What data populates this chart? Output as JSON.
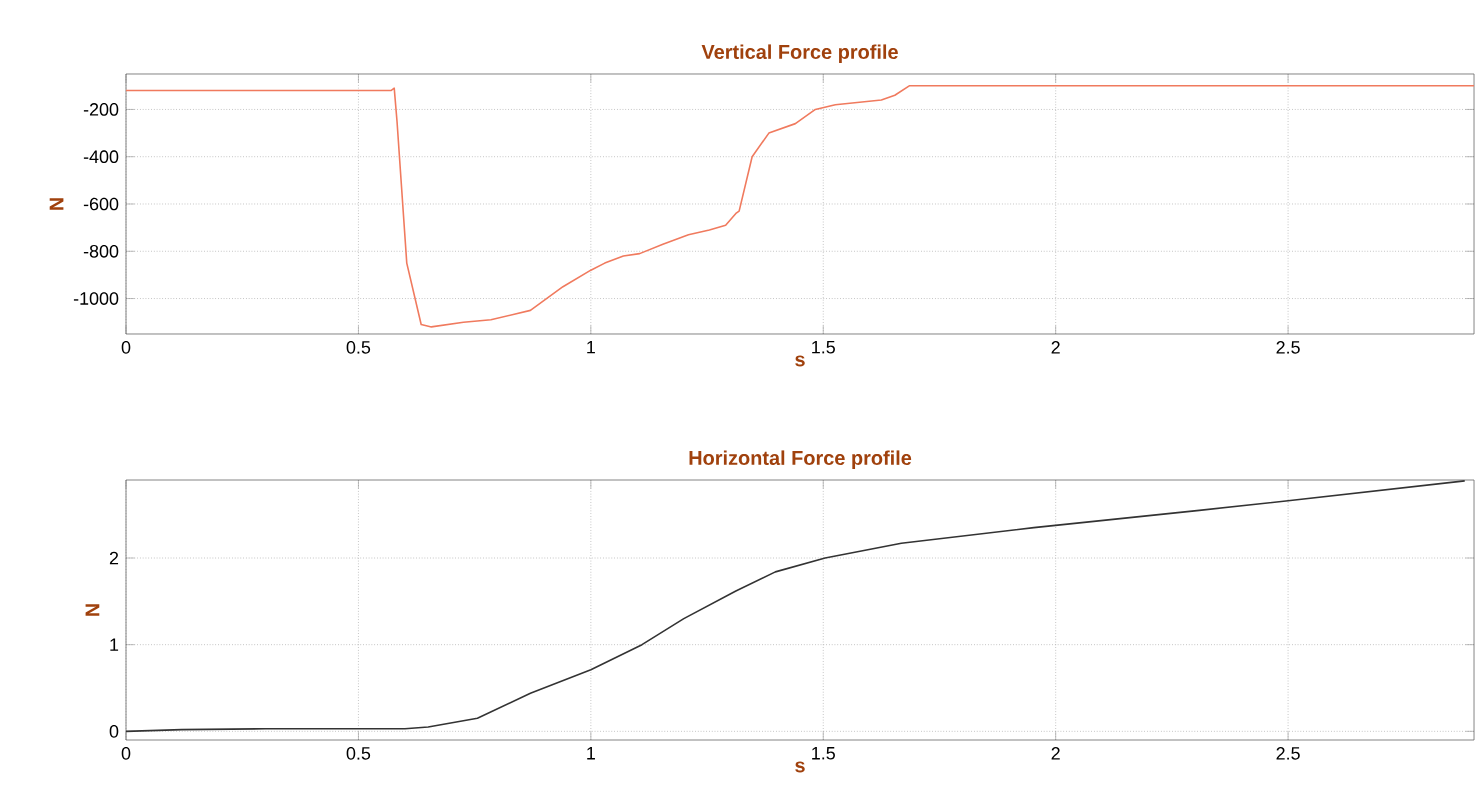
{
  "chart_data": [
    {
      "type": "line",
      "title": "Vertical Force profile",
      "xlabel": "s",
      "ylabel": "N",
      "xlim": [
        0,
        2.9
      ],
      "ylim": [
        -1150,
        -50
      ],
      "xticks": [
        0,
        0.5,
        1,
        1.5,
        2,
        2.5
      ],
      "yticks": [
        -200,
        -400,
        -600,
        -800,
        -1000
      ],
      "grid": true,
      "series": [
        {
          "color": "#f07a5e",
          "x": [
            0,
            0.57,
            0.577,
            0.583,
            0.604,
            0.635,
            0.657,
            0.726,
            0.785,
            0.87,
            0.94,
            1.0,
            1.03,
            1.07,
            1.105,
            1.155,
            1.21,
            1.255,
            1.29,
            1.312,
            1.319,
            1.347,
            1.383,
            1.44,
            1.483,
            1.526,
            1.625,
            1.654,
            1.685,
            2.9
          ],
          "values": [
            -120,
            -120,
            -110,
            -250,
            -850,
            -1110,
            -1120,
            -1100,
            -1090,
            -1050,
            -950,
            -880,
            -850,
            -820,
            -810,
            -770,
            -730,
            -710,
            -690,
            -640,
            -630,
            -400,
            -300,
            -260,
            -200,
            -180,
            -160,
            -140,
            -100,
            -100
          ]
        }
      ]
    },
    {
      "type": "line",
      "title": "Horizontal Force profile",
      "xlabel": "s",
      "ylabel": "N",
      "xlim": [
        0,
        2.9
      ],
      "ylim": [
        -0.1,
        2.9
      ],
      "xticks": [
        0,
        0.5,
        1,
        1.5,
        2,
        2.5
      ],
      "yticks": [
        0,
        1,
        2
      ],
      "grid": true,
      "series": [
        {
          "color": "#333333",
          "x": [
            0,
            0.12,
            0.3,
            0.5,
            0.6,
            0.65,
            0.756,
            0.87,
            1.0,
            1.11,
            1.2,
            1.312,
            1.397,
            1.504,
            1.668,
            1.953,
            2.309,
            2.5,
            2.88
          ],
          "values": [
            0,
            0.02,
            0.03,
            0.03,
            0.03,
            0.05,
            0.15,
            0.44,
            0.71,
            1.0,
            1.3,
            1.62,
            1.84,
            2.0,
            2.17,
            2.35,
            2.55,
            2.66,
            2.89
          ]
        }
      ]
    }
  ]
}
